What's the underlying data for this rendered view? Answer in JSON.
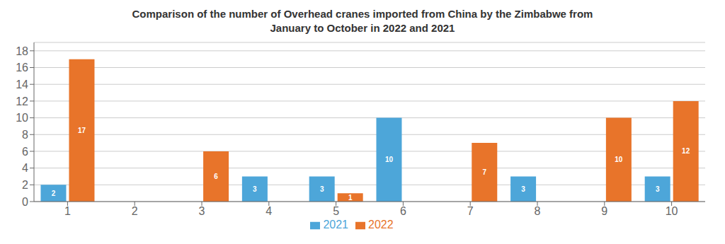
{
  "chart_data": {
    "type": "bar",
    "title": "Comparison of the number of Overhead cranes imported from China by the Zimbabwe from\nJanuary to October in 2022 and 2021",
    "categories": [
      "1",
      "2",
      "3",
      "4",
      "5",
      "6",
      "7",
      "8",
      "9",
      "10"
    ],
    "series": [
      {
        "name": "2021",
        "color": "#4da6d9",
        "values": [
          2,
          0,
          0,
          3,
          3,
          10,
          0,
          3,
          0,
          3
        ]
      },
      {
        "name": "2022",
        "color": "#e8742a",
        "values": [
          17,
          0,
          6,
          0,
          1,
          0,
          7,
          0,
          10,
          12
        ]
      }
    ],
    "ylim": [
      0,
      19
    ],
    "yticks": [
      0,
      2,
      4,
      6,
      8,
      10,
      12,
      14,
      16,
      18
    ],
    "grid": true,
    "legend": "bottom",
    "data_labels": true
  }
}
